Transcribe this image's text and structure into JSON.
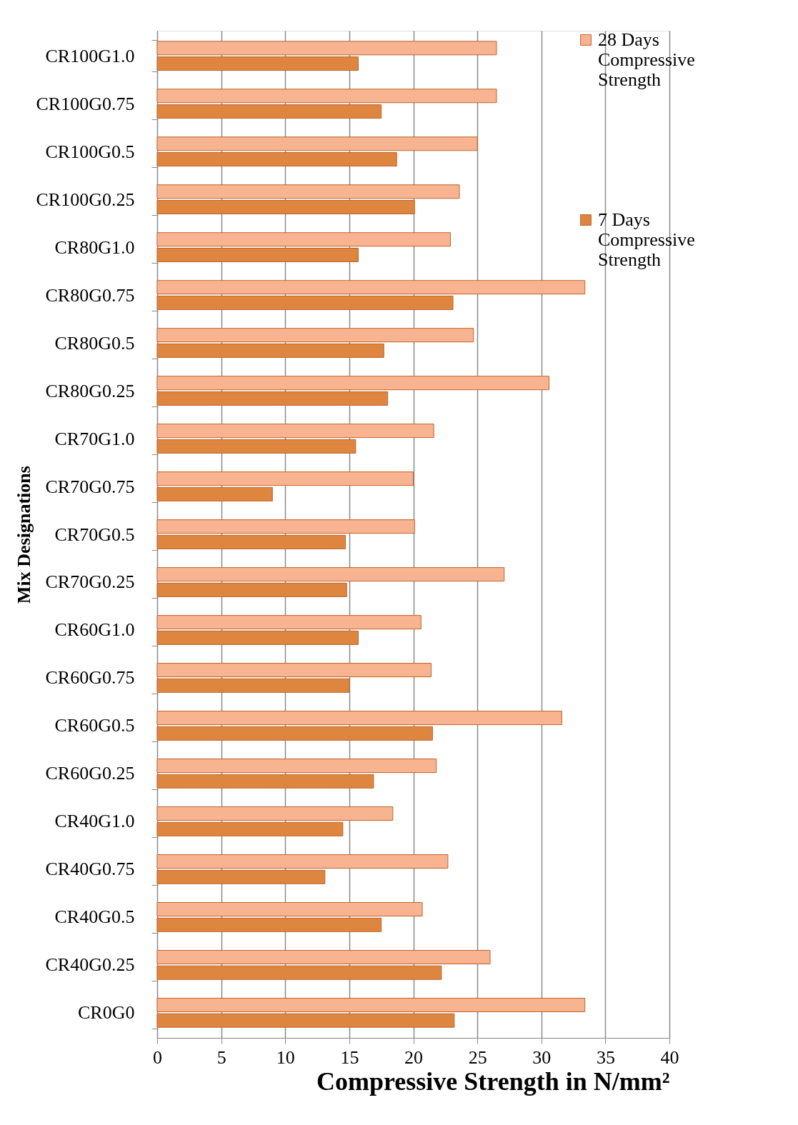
{
  "chart_data": {
    "type": "bar",
    "orientation": "horizontal",
    "xlabel": "Compressive Strength in N/mm²",
    "ylabel": "Mix Designations",
    "categories": [
      "CR100G1.0",
      "CR100G0.75",
      "CR100G0.5",
      "CR100G0.25",
      "CR80G1.0",
      "CR80G0.75",
      "CR80G0.5",
      "CR80G0.25",
      "CR70G1.0",
      "CR70G0.75",
      "CR70G0.5",
      "CR70G0.25",
      "CR60G1.0",
      "CR60G0.75",
      "CR60G0.5",
      "CR60G0.25",
      "CR40G1.0",
      "CR40G0.75",
      "CR40G0.5",
      "CR40G0.25",
      "CR0G0"
    ],
    "series": [
      {
        "name": "28 Days Compressive Strength",
        "color": "#f8b390",
        "values": [
          26.5,
          26.5,
          25.0,
          23.6,
          22.9,
          33.4,
          24.7,
          30.6,
          21.6,
          20.0,
          20.1,
          27.1,
          20.6,
          21.4,
          31.6,
          21.8,
          18.4,
          22.7,
          20.7,
          26.0,
          33.4
        ]
      },
      {
        "name": "7 Days Compressive Strength",
        "color": "#de853f",
        "values": [
          15.7,
          17.5,
          18.7,
          20.1,
          15.7,
          23.1,
          17.7,
          18.0,
          15.5,
          9.0,
          14.7,
          14.8,
          15.7,
          15.0,
          21.5,
          16.9,
          14.5,
          13.1,
          17.5,
          22.2,
          23.2
        ]
      }
    ],
    "xlim": [
      0,
      40
    ],
    "xticks": [
      0,
      5,
      10,
      15,
      20,
      25,
      30,
      35,
      40
    ],
    "grid": "x",
    "legend": "right"
  }
}
